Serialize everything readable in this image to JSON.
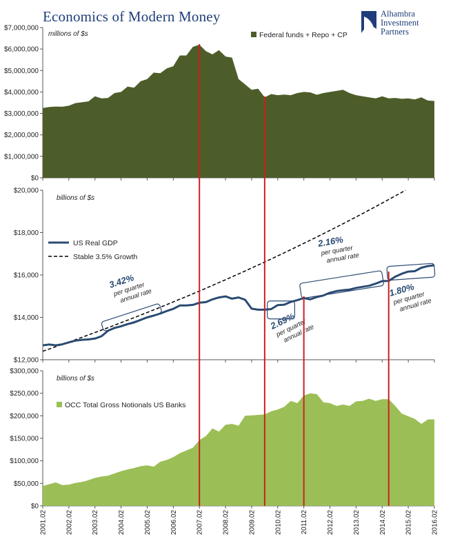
{
  "title": "Economics of Modern Money",
  "logo": {
    "lines": [
      "Alhambra",
      "Investment",
      "Partners"
    ],
    "icon": "alhambra-logo-icon"
  },
  "colors": {
    "top_area": "#4d5d2a",
    "gdp_line": "#2a4a72",
    "bottom_area": "#9bbf56",
    "event_line": "#cc1f1f",
    "annotation": "#2a4a72"
  },
  "chart_data": [
    {
      "type": "area",
      "units": "millions of $s",
      "legend": "Federal funds + Repo + CP",
      "ylim": [
        0,
        7000000
      ],
      "yticks": [
        "$0",
        "$1,000,000",
        "$2,000,000",
        "$3,000,000",
        "$4,000,000",
        "$5,000,000",
        "$6,000,000",
        "$7,000,000"
      ],
      "x": [
        2001.0,
        2001.25,
        2001.5,
        2001.75,
        2002.0,
        2002.25,
        2002.5,
        2002.75,
        2003.0,
        2003.25,
        2003.5,
        2003.75,
        2004.0,
        2004.25,
        2004.5,
        2004.75,
        2005.0,
        2005.25,
        2005.5,
        2005.75,
        2006.0,
        2006.25,
        2006.5,
        2006.75,
        2007.0,
        2007.25,
        2007.5,
        2007.75,
        2008.0,
        2008.25,
        2008.5,
        2008.75,
        2009.0,
        2009.25,
        2009.5,
        2009.75,
        2010.0,
        2010.25,
        2010.5,
        2010.75,
        2011.0,
        2011.25,
        2011.5,
        2011.75,
        2012.0,
        2012.25,
        2012.5,
        2012.75,
        2013.0,
        2013.25,
        2013.5,
        2013.75,
        2014.0,
        2014.25,
        2014.5,
        2014.75,
        2015.0,
        2015.25,
        2015.5,
        2015.75,
        2016.0
      ],
      "values": [
        3250000,
        3300000,
        3320000,
        3310000,
        3360000,
        3480000,
        3520000,
        3560000,
        3800000,
        3700000,
        3720000,
        3950000,
        4000000,
        4250000,
        4200000,
        4500000,
        4600000,
        4900000,
        4870000,
        5100000,
        5200000,
        5700000,
        5700000,
        6100000,
        6200000,
        5900000,
        5750000,
        5950000,
        5650000,
        5600000,
        4600000,
        4350000,
        4100000,
        4150000,
        3750000,
        3900000,
        3850000,
        3880000,
        3850000,
        3950000,
        4000000,
        3980000,
        3870000,
        3950000,
        4000000,
        4050000,
        4100000,
        3950000,
        3850000,
        3800000,
        3750000,
        3700000,
        3800000,
        3700000,
        3720000,
        3680000,
        3700000,
        3650000,
        3750000,
        3600000,
        3580000
      ]
    },
    {
      "type": "line",
      "units": "billions of $s",
      "ylim": [
        12000,
        20000
      ],
      "yticks": [
        "$12,000",
        "$14,000",
        "$16,000",
        "$18,000",
        "$20,000"
      ],
      "series": [
        {
          "name": "US Real GDP",
          "x": [
            2001.0,
            2001.25,
            2001.5,
            2001.75,
            2002.0,
            2002.25,
            2002.5,
            2002.75,
            2003.0,
            2003.25,
            2003.5,
            2003.75,
            2004.0,
            2004.25,
            2004.5,
            2004.75,
            2005.0,
            2005.25,
            2005.5,
            2005.75,
            2006.0,
            2006.25,
            2006.5,
            2006.75,
            2007.0,
            2007.25,
            2007.5,
            2007.75,
            2008.0,
            2008.25,
            2008.5,
            2008.75,
            2009.0,
            2009.25,
            2009.5,
            2009.75,
            2010.0,
            2010.25,
            2010.5,
            2010.75,
            2011.0,
            2011.25,
            2011.5,
            2011.75,
            2012.0,
            2012.25,
            2012.5,
            2012.75,
            2013.0,
            2013.25,
            2013.5,
            2013.75,
            2014.0,
            2014.25,
            2014.5,
            2014.75,
            2015.0,
            2015.25,
            2015.5,
            2015.75,
            2016.0
          ],
          "values": [
            12680,
            12720,
            12680,
            12730,
            12820,
            12900,
            12940,
            12960,
            13000,
            13110,
            13370,
            13500,
            13580,
            13680,
            13760,
            13880,
            14000,
            14080,
            14180,
            14300,
            14400,
            14560,
            14560,
            14590,
            14690,
            14720,
            14850,
            14940,
            14990,
            14880,
            14940,
            14830,
            14410,
            14360,
            14360,
            14390,
            14580,
            14600,
            14730,
            14810,
            14910,
            14850,
            14960,
            15030,
            15160,
            15240,
            15280,
            15310,
            15390,
            15440,
            15490,
            15590,
            15710,
            15720,
            15920,
            16060,
            16160,
            16180,
            16340,
            16420,
            16460
          ]
        },
        {
          "name": "Stable 3.5% Growth",
          "start_x": 2001.0,
          "start_value": 12400,
          "annual_rate": 0.035
        }
      ],
      "annotations": [
        {
          "rate": "3.42%",
          "l1": "per quarter",
          "l2": "annual rate"
        },
        {
          "rate": "2.69%",
          "l1": "per quarter",
          "l2": "annual rate"
        },
        {
          "rate": "2.16%",
          "l1": "per quarter",
          "l2": "annual rate"
        },
        {
          "rate": "1.80%",
          "l1": "per quarter",
          "l2": "annual rate"
        }
      ]
    },
    {
      "type": "area",
      "units": "billions of $s",
      "legend": "OCC Total Gross Notionals US Banks",
      "ylim": [
        0,
        300000
      ],
      "yticks": [
        "$0",
        "$50,000",
        "$100,000",
        "$150,000",
        "$200,000",
        "$250,000",
        "$300,000"
      ],
      "x": [
        2001.0,
        2001.25,
        2001.5,
        2001.75,
        2002.0,
        2002.25,
        2002.5,
        2002.75,
        2003.0,
        2003.25,
        2003.5,
        2003.75,
        2004.0,
        2004.25,
        2004.5,
        2004.75,
        2005.0,
        2005.25,
        2005.5,
        2005.75,
        2006.0,
        2006.25,
        2006.5,
        2006.75,
        2007.0,
        2007.25,
        2007.5,
        2007.75,
        2008.0,
        2008.25,
        2008.5,
        2008.75,
        2009.0,
        2009.25,
        2009.5,
        2009.75,
        2010.0,
        2010.25,
        2010.5,
        2010.75,
        2011.0,
        2011.25,
        2011.5,
        2011.75,
        2012.0,
        2012.25,
        2012.5,
        2012.75,
        2013.0,
        2013.25,
        2013.5,
        2013.75,
        2014.0,
        2014.25,
        2014.5,
        2014.75,
        2015.0,
        2015.25,
        2015.5,
        2015.75,
        2016.0
      ],
      "values": [
        44000,
        48000,
        52000,
        46000,
        47000,
        51000,
        53000,
        57000,
        62000,
        65000,
        67000,
        72000,
        77000,
        81000,
        84000,
        88000,
        90000,
        87000,
        98000,
        102000,
        108000,
        117000,
        123000,
        129000,
        146000,
        155000,
        172000,
        165000,
        180000,
        182000,
        178000,
        200000,
        201000,
        202000,
        203000,
        210000,
        214000,
        220000,
        233000,
        228000,
        245000,
        250000,
        248000,
        230000,
        228000,
        222000,
        225000,
        222000,
        232000,
        233000,
        238000,
        233000,
        237000,
        237000,
        222000,
        205000,
        199000,
        193000,
        182000,
        192000,
        192000
      ]
    }
  ],
  "x_tick_labels": [
    "2001.02",
    "2002.02",
    "2003.02",
    "2004.02",
    "2005.02",
    "2006.02",
    "2007.02",
    "2008.02",
    "2009.02",
    "2010.02",
    "2011.02",
    "2012.02",
    "2013.02",
    "2014.02",
    "2015.02",
    "2016.02"
  ],
  "event_dates": [
    "2007.02",
    "2009.04",
    "2011.02",
    "2014.02"
  ]
}
